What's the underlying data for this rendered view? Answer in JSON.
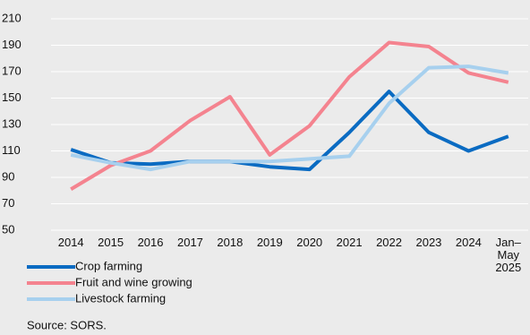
{
  "chart_data": {
    "type": "line",
    "categories": [
      "2014",
      "2015",
      "2016",
      "2017",
      "2018",
      "2019",
      "2020",
      "2021",
      "2022",
      "2023",
      "2024",
      "Jan–May 2025"
    ],
    "series": [
      {
        "name": "Crop farming",
        "color": "#0a6bc2",
        "values": [
          111,
          101,
          100,
          102,
          102,
          98,
          96,
          124,
          155,
          124,
          110,
          121
        ]
      },
      {
        "name": "Fruit and wine growing",
        "color": "#f4838f",
        "values": [
          81,
          99,
          110,
          133,
          151,
          107,
          129,
          166,
          192,
          189,
          169,
          162
        ]
      },
      {
        "name": "Livestock farming",
        "color": "#a7d0ee",
        "values": [
          107,
          101,
          96,
          102,
          102,
          102,
          104,
          106,
          146,
          173,
          174,
          169
        ]
      }
    ],
    "ylim": [
      50,
      210
    ],
    "yticks": [
      50,
      70,
      90,
      110,
      130,
      150,
      170,
      190,
      210
    ],
    "grid": true,
    "source": "Source: SORS."
  }
}
